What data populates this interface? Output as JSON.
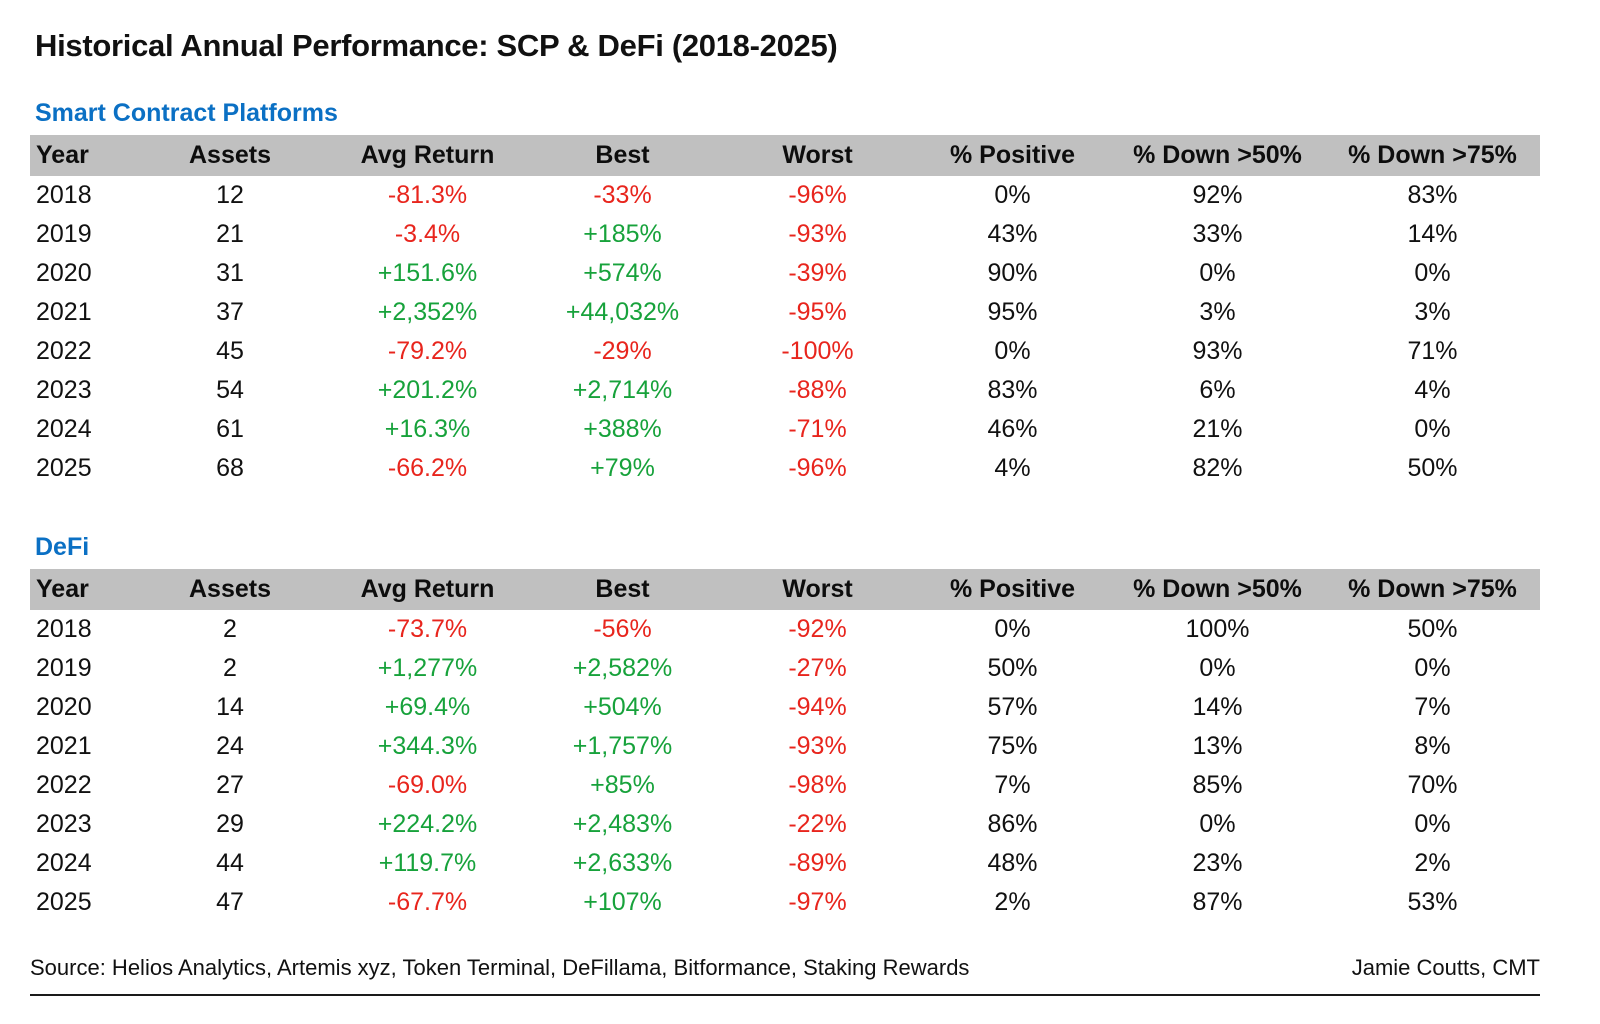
{
  "title": "Historical Annual Performance: SCP & DeFi (2018-2025)",
  "columns": [
    "Year",
    "Assets",
    "Avg Return",
    "Best",
    "Worst",
    "% Positive",
    "% Down >50%",
    "% Down >75%"
  ],
  "chart_data": [
    {
      "type": "table",
      "name": "Smart Contract Platforms",
      "columns": [
        "Year",
        "Assets",
        "Avg Return",
        "Best",
        "Worst",
        "% Positive",
        "% Down >50%",
        "% Down >75%"
      ],
      "rows": [
        [
          "2018",
          "12",
          "-81.3%",
          "-33%",
          "-96%",
          "0%",
          "92%",
          "83%"
        ],
        [
          "2019",
          "21",
          "-3.4%",
          "+185%",
          "-93%",
          "43%",
          "33%",
          "14%"
        ],
        [
          "2020",
          "31",
          "+151.6%",
          "+574%",
          "-39%",
          "90%",
          "0%",
          "0%"
        ],
        [
          "2021",
          "37",
          "+2,352%",
          "+44,032%",
          "-95%",
          "95%",
          "3%",
          "3%"
        ],
        [
          "2022",
          "45",
          "-79.2%",
          "-29%",
          "-100%",
          "0%",
          "93%",
          "71%"
        ],
        [
          "2023",
          "54",
          "+201.2%",
          "+2,714%",
          "-88%",
          "83%",
          "6%",
          "4%"
        ],
        [
          "2024",
          "61",
          "+16.3%",
          "+388%",
          "-71%",
          "46%",
          "21%",
          "0%"
        ],
        [
          "2025",
          "68",
          "-66.2%",
          "+79%",
          "-96%",
          "4%",
          "82%",
          "50%"
        ]
      ]
    },
    {
      "type": "table",
      "name": "DeFi",
      "columns": [
        "Year",
        "Assets",
        "Avg Return",
        "Best",
        "Worst",
        "% Positive",
        "% Down >50%",
        "% Down >75%"
      ],
      "rows": [
        [
          "2018",
          "2",
          "-73.7%",
          "-56%",
          "-92%",
          "0%",
          "100%",
          "50%"
        ],
        [
          "2019",
          "2",
          "+1,277%",
          "+2,582%",
          "-27%",
          "50%",
          "0%",
          "0%"
        ],
        [
          "2020",
          "14",
          "+69.4%",
          "+504%",
          "-94%",
          "57%",
          "14%",
          "7%"
        ],
        [
          "2021",
          "24",
          "+344.3%",
          "+1,757%",
          "-93%",
          "75%",
          "13%",
          "8%"
        ],
        [
          "2022",
          "27",
          "-69.0%",
          "+85%",
          "-98%",
          "7%",
          "85%",
          "70%"
        ],
        [
          "2023",
          "29",
          "+224.2%",
          "+2,483%",
          "-22%",
          "86%",
          "0%",
          "0%"
        ],
        [
          "2024",
          "44",
          "+119.7%",
          "+2,633%",
          "-89%",
          "48%",
          "23%",
          "2%"
        ],
        [
          "2025",
          "47",
          "-67.7%",
          "+107%",
          "-97%",
          "2%",
          "87%",
          "53%"
        ]
      ]
    }
  ],
  "footer": {
    "source": "Source: Helios Analytics, Artemis xyz, Token Terminal, DeFillama, Bitformance, Staking Rewards",
    "credit": "Jamie Coutts, CMT"
  },
  "colors": {
    "accent_blue": "#0b70c4",
    "positive_green": "#17a23b",
    "negative_red": "#e8251d",
    "header_gray": "#c0c0c0"
  }
}
